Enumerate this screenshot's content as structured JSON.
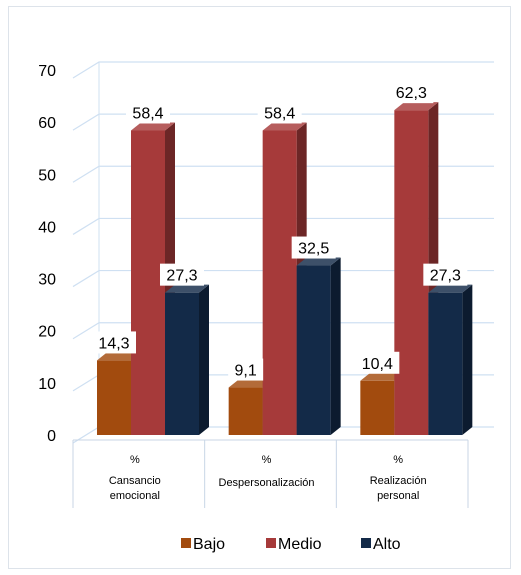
{
  "chart_data": {
    "type": "bar",
    "categories": [
      [
        "%",
        "Cansancio",
        "emocional"
      ],
      [
        "%",
        "Despersonalización"
      ],
      [
        "%",
        "Realización",
        "personal"
      ]
    ],
    "series": [
      {
        "name": "Bajo",
        "color": "#a24b0e",
        "values": [
          14.3,
          9.1,
          10.4
        ]
      },
      {
        "name": "Medio",
        "color": "#a63a3a",
        "values": [
          58.4,
          58.4,
          62.3
        ]
      },
      {
        "name": "Alto",
        "color": "#132a48",
        "values": [
          27.3,
          32.5,
          27.3
        ]
      }
    ],
    "value_labels": [
      [
        "14,3",
        "9,1",
        "10,4"
      ],
      [
        "58,4",
        "58,4",
        "62,3"
      ],
      [
        "27,3",
        "32,5",
        "27,3"
      ]
    ],
    "y_ticks": [
      "0",
      "10",
      "20",
      "30",
      "40",
      "50",
      "60",
      "70"
    ],
    "ylim": [
      0,
      70
    ],
    "grid": true,
    "legend_position": "bottom",
    "style": "3d-clustered-column"
  }
}
